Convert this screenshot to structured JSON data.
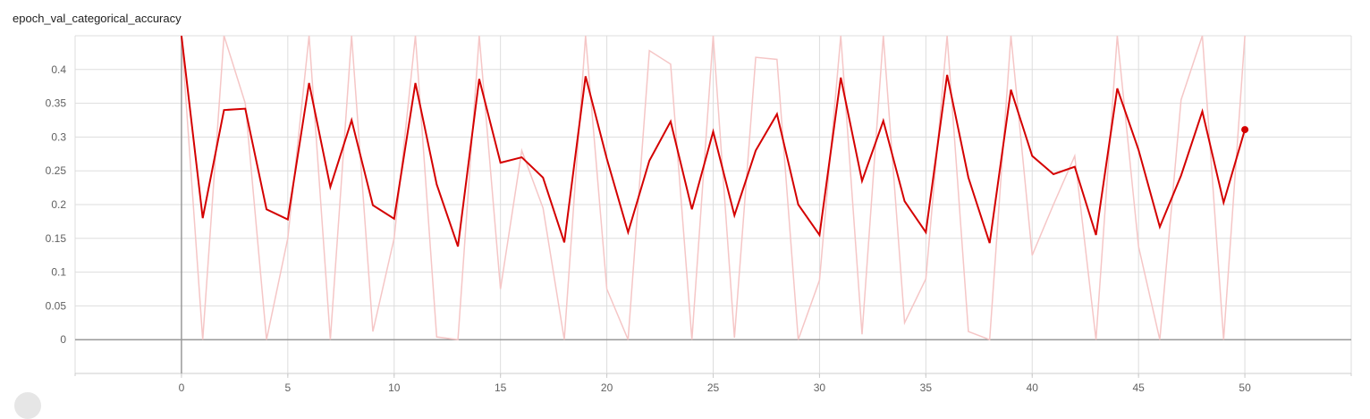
{
  "chart_data": {
    "type": "line",
    "title": "epoch_val_categorical_accuracy",
    "xlabel": "",
    "ylabel": "",
    "xlim": [
      -5,
      55
    ],
    "ylim": [
      -0.05,
      0.45
    ],
    "x_ticks": [
      0,
      5,
      10,
      15,
      20,
      25,
      30,
      35,
      40,
      45,
      50
    ],
    "y_ticks": [
      0,
      0.05,
      0.1,
      0.15,
      0.2,
      0.25,
      0.3,
      0.35,
      0.4
    ],
    "y_tick_labels": [
      "0",
      "0.05",
      "0.1",
      "0.15",
      "0.2",
      "0.25",
      "0.3",
      "0.35",
      "0.4"
    ],
    "grid": true,
    "x": [
      0,
      1,
      2,
      3,
      4,
      5,
      6,
      7,
      8,
      9,
      10,
      11,
      12,
      13,
      14,
      15,
      16,
      17,
      18,
      19,
      20,
      21,
      22,
      23,
      24,
      25,
      26,
      27,
      28,
      29,
      30,
      31,
      32,
      33,
      34,
      35,
      36,
      37,
      38,
      39,
      40,
      41,
      42,
      43,
      44,
      45,
      46,
      47,
      48,
      49,
      50
    ],
    "series": [
      {
        "color": "#f5c6c6",
        "values": [
          0.45,
          0.0,
          0.45,
          0.35,
          0.0,
          0.15,
          0.45,
          0.0,
          0.45,
          0.012,
          0.15,
          0.45,
          0.004,
          0.0,
          0.45,
          0.075,
          0.28,
          0.195,
          0.0,
          0.45,
          0.075,
          0.0,
          0.428,
          0.408,
          0.0,
          0.45,
          0.003,
          0.418,
          0.415,
          0.0,
          0.088,
          0.45,
          0.008,
          0.45,
          0.025,
          0.09,
          0.45,
          0.012,
          0.0,
          0.45,
          0.125,
          0.2,
          0.272,
          0.0,
          0.45,
          0.138,
          0.0,
          0.355,
          0.45,
          0.0,
          0.45
        ]
      },
      {
        "color": "#d40000",
        "values": [
          0.45,
          0.18,
          0.34,
          0.342,
          0.193,
          0.178,
          0.38,
          0.226,
          0.325,
          0.199,
          0.179,
          0.38,
          0.23,
          0.138,
          0.386,
          0.262,
          0.27,
          0.24,
          0.144,
          0.39,
          0.268,
          0.159,
          0.265,
          0.323,
          0.193,
          0.308,
          0.184,
          0.28,
          0.334,
          0.2,
          0.155,
          0.388,
          0.235,
          0.324,
          0.205,
          0.159,
          0.392,
          0.24,
          0.143,
          0.37,
          0.272,
          0.245,
          0.256,
          0.155,
          0.372,
          0.281,
          0.167,
          0.243,
          0.338,
          0.203,
          0.311
        ]
      }
    ]
  }
}
